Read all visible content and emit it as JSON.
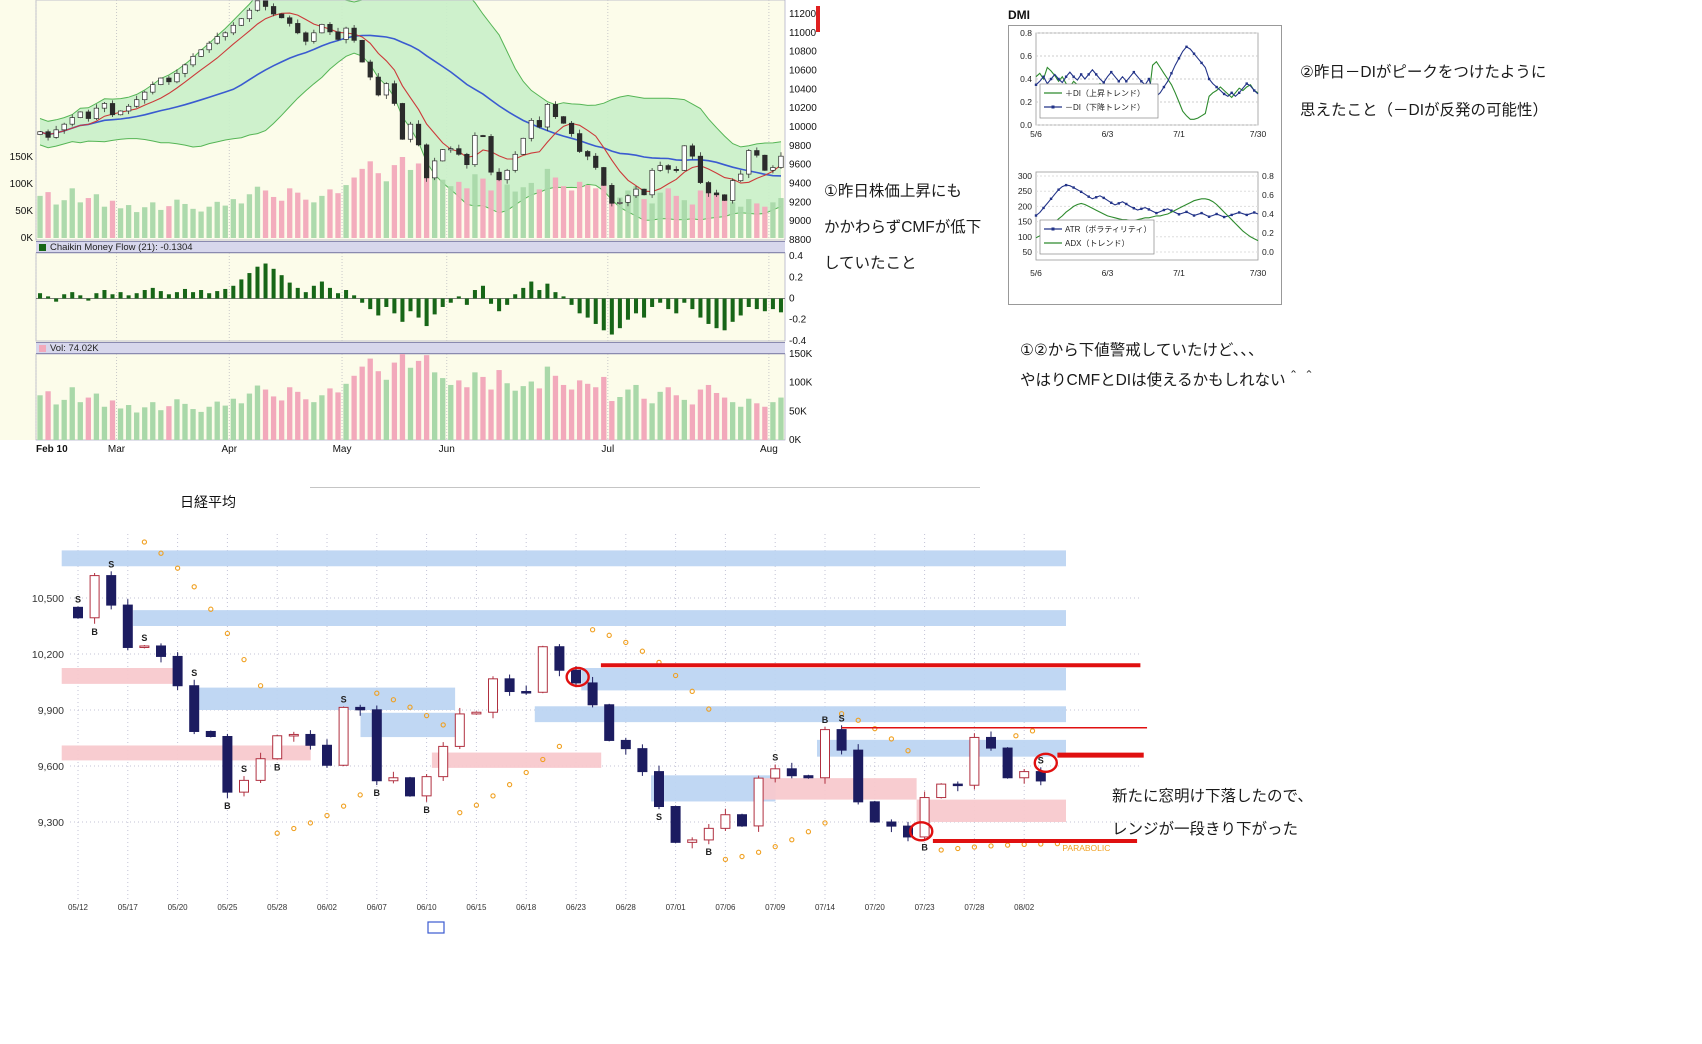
{
  "annotations": {
    "note1": {
      "lines": [
        "①昨日株価上昇にも",
        "かかわらずCMFが低下",
        "していたこと"
      ]
    },
    "note2": {
      "lines": [
        "②昨日－DIがピークをつけたように",
        "思えたこと（－DIが反発の可能性）"
      ]
    },
    "note3": {
      "lines": [
        "①②から下値警戒していたけど、、、",
        "やはりCMFとDIは使えるかもしれない＾＾"
      ]
    },
    "note4": {
      "lines": [
        "新たに窓明け下落したので、",
        "レンジが一段きり下がった"
      ]
    }
  },
  "chart_data": [
    {
      "id": "nikkei-daily-price-cmf-volume",
      "type": "candlestick",
      "x_ticks": [
        {
          "label": "Feb 10",
          "i": 0,
          "bold": true
        },
        {
          "label": "Mar",
          "i": 10
        },
        {
          "label": "Apr",
          "i": 24
        },
        {
          "label": "May",
          "i": 38
        },
        {
          "label": "Jun",
          "i": 51
        },
        {
          "label": "Jul",
          "i": 71
        },
        {
          "label": "Aug",
          "i": 91
        }
      ],
      "y_axis_right": [
        11200,
        11000,
        10800,
        10600,
        10400,
        10200,
        10000,
        9800,
        9600,
        9400,
        9200,
        9000,
        8800
      ],
      "ylim": [
        8800,
        11200
      ],
      "volume_axis": [
        [
          150,
          "150K"
        ],
        [
          100,
          "100K"
        ],
        [
          50,
          "50K"
        ],
        [
          0,
          "0K"
        ]
      ],
      "cmf_label": "Chaikin Money Flow (21): -0.1304",
      "cmf_last": -0.1304,
      "cmf_axis": [
        "0.4",
        "0.2",
        "0",
        "-0.2",
        "-0.4"
      ],
      "vol_label": "Vol: 74.02K",
      "vol_last_k": 74.02,
      "close": [
        9950,
        9890,
        9970,
        10030,
        10100,
        10160,
        10090,
        10200,
        10250,
        10130,
        10170,
        10220,
        10290,
        10370,
        10450,
        10520,
        10480,
        10570,
        10660,
        10750,
        10820,
        10890,
        10960,
        11000,
        11080,
        11150,
        11240,
        11340,
        11280,
        11200,
        11160,
        11100,
        11000,
        10910,
        11000,
        11090,
        11010,
        10930,
        11050,
        10920,
        10690,
        10530,
        10340,
        10460,
        10250,
        9870,
        10030,
        9810,
        9460,
        9640,
        9760,
        9770,
        9710,
        9600,
        9910,
        9900,
        9520,
        9440,
        9540,
        9710,
        9880,
        10070,
        10000,
        10240,
        10110,
        10040,
        9930,
        9740,
        9690,
        9570,
        9380,
        9190,
        9200,
        9270,
        9340,
        9280,
        9540,
        9590,
        9550,
        9540,
        9800,
        9690,
        9410,
        9300,
        9280,
        9220,
        9430,
        9500,
        9750,
        9700,
        9540,
        9570,
        9690
      ],
      "volume_k": [
        78,
        85,
        62,
        70,
        92,
        66,
        74,
        81,
        58,
        69,
        55,
        61,
        48,
        57,
        66,
        52,
        59,
        71,
        63,
        54,
        49,
        58,
        67,
        60,
        72,
        64,
        81,
        95,
        88,
        76,
        69,
        92,
        84,
        71,
        66,
        78,
        90,
        83,
        98,
        112,
        128,
        142,
        120,
        105,
        135,
        150,
        126,
        138,
        148,
        118,
        108,
        96,
        104,
        92,
        118,
        110,
        88,
        122,
        99,
        86,
        94,
        102,
        90,
        128,
        112,
        96,
        88,
        104,
        98,
        92,
        110,
        68,
        75,
        88,
        96,
        72,
        64,
        84,
        92,
        78,
        70,
        62,
        88,
        96,
        82,
        74,
        66,
        58,
        72,
        64,
        58,
        66,
        74
      ],
      "cmf": [
        0.05,
        0.02,
        -0.03,
        0.04,
        0.06,
        0.03,
        -0.02,
        0.05,
        0.08,
        0.04,
        0.06,
        0.03,
        0.05,
        0.08,
        0.1,
        0.07,
        0.04,
        0.06,
        0.09,
        0.06,
        0.08,
        0.05,
        0.07,
        0.09,
        0.12,
        0.18,
        0.24,
        0.3,
        0.33,
        0.28,
        0.22,
        0.15,
        0.1,
        0.06,
        0.12,
        0.16,
        0.1,
        0.05,
        0.08,
        0.03,
        -0.04,
        -0.1,
        -0.16,
        -0.08,
        -0.14,
        -0.22,
        -0.12,
        -0.18,
        -0.26,
        -0.15,
        -0.08,
        -0.04,
        0.02,
        -0.06,
        0.08,
        0.12,
        -0.05,
        -0.12,
        -0.06,
        0.04,
        0.1,
        0.16,
        0.08,
        0.14,
        0.06,
        0.02,
        -0.06,
        -0.14,
        -0.18,
        -0.24,
        -0.3,
        -0.34,
        -0.28,
        -0.2,
        -0.14,
        -0.18,
        -0.08,
        -0.04,
        -0.1,
        -0.14,
        -0.04,
        -0.1,
        -0.18,
        -0.24,
        -0.28,
        -0.3,
        -0.22,
        -0.16,
        -0.08,
        -0.1,
        -0.12,
        -0.1,
        -0.1304
      ],
      "colors": {
        "panel_bg": "#fcfcea",
        "header_bg": "#d7d7ec",
        "boll_fill": "#c9efc9",
        "boll_line": "#55b555",
        "vol_up": "#a9d8a9",
        "vol_down": "#f2a9bb",
        "ma_fast": "#cc3a3a",
        "ma_slow": "#3a5bd0",
        "cmf_bar": "#176617",
        "red_mark": "#e02020"
      }
    },
    {
      "id": "dmi",
      "type": "line",
      "title": "DMI",
      "y_labels": [
        "0.8",
        "0.6",
        "0.4",
        "0.2",
        "0.0"
      ],
      "ylim": [
        0,
        0.8
      ],
      "x_labels": [
        "5/6",
        "6/3",
        "7/1",
        "7/30"
      ],
      "x_ticks": [
        0,
        19,
        38,
        59
      ],
      "series": [
        {
          "name": "＋DI（上昇トレンド）",
          "color": "#2e8b2e",
          "marker": false,
          "values": [
            0.42,
            0.45,
            0.4,
            0.5,
            0.47,
            0.43,
            0.38,
            0.42,
            0.36,
            0.33,
            0.38,
            0.35,
            0.3,
            0.34,
            0.3,
            0.27,
            0.32,
            0.36,
            0.33,
            0.29,
            0.26,
            0.3,
            0.27,
            0.24,
            0.28,
            0.25,
            0.22,
            0.26,
            0.3,
            0.28,
            0.25,
            0.52,
            0.55,
            0.5,
            0.45,
            0.4,
            0.35,
            0.28,
            0.2,
            0.12,
            0.08,
            0.05,
            0.05,
            0.06,
            0.08,
            0.1,
            0.25,
            0.28,
            0.3,
            0.33,
            0.3,
            0.27,
            0.24,
            0.28,
            0.32,
            0.3,
            0.33,
            0.35,
            0.3,
            0.28
          ]
        },
        {
          "name": "－DI（下降トレンド）",
          "color": "#223388",
          "marker": true,
          "values": [
            0.35,
            0.38,
            0.42,
            0.36,
            0.4,
            0.44,
            0.4,
            0.37,
            0.42,
            0.46,
            0.42,
            0.39,
            0.44,
            0.4,
            0.44,
            0.48,
            0.44,
            0.4,
            0.37,
            0.42,
            0.46,
            0.42,
            0.38,
            0.42,
            0.38,
            0.42,
            0.46,
            0.42,
            0.38,
            0.35,
            0.4,
            0.3,
            0.25,
            0.28,
            0.33,
            0.38,
            0.45,
            0.52,
            0.58,
            0.64,
            0.68,
            0.66,
            0.62,
            0.58,
            0.54,
            0.5,
            0.4,
            0.36,
            0.33,
            0.3,
            0.27,
            0.25,
            0.28,
            0.25,
            0.28,
            0.32,
            0.36,
            0.34,
            0.3,
            0.27
          ]
        }
      ]
    },
    {
      "id": "atr-adx",
      "type": "line",
      "y_labels_left": [
        "300",
        "250",
        "200",
        "150",
        "100",
        "50"
      ],
      "ylim_left": [
        50,
        300
      ],
      "y_labels_right": [
        "0.8",
        "0.6",
        "0.4",
        "0.2",
        "0.0"
      ],
      "ylim_right": [
        0,
        0.8
      ],
      "x_labels": [
        "5/6",
        "6/3",
        "7/1",
        "7/30"
      ],
      "x_ticks": [
        0,
        19,
        38,
        59
      ],
      "series": [
        {
          "name": "ATR（ボラティリティ）",
          "color": "#223388",
          "marker": true,
          "axis": "left",
          "values": [
            170,
            180,
            195,
            210,
            225,
            240,
            255,
            265,
            270,
            268,
            262,
            255,
            248,
            240,
            232,
            225,
            230,
            235,
            228,
            220,
            212,
            205,
            210,
            215,
            208,
            200,
            194,
            188,
            192,
            196,
            190,
            184,
            178,
            183,
            188,
            192,
            186,
            180,
            174,
            178,
            182,
            176,
            170,
            174,
            178,
            172,
            166,
            170,
            175,
            170,
            165,
            168,
            172,
            176,
            180,
            176,
            172,
            176,
            180,
            175
          ]
        },
        {
          "name": "ADX（トレンド）",
          "color": "#2e8b2e",
          "marker": false,
          "axis": "right",
          "values": [
            0.15,
            0.17,
            0.2,
            0.23,
            0.27,
            0.31,
            0.35,
            0.38,
            0.42,
            0.45,
            0.48,
            0.5,
            0.51,
            0.5,
            0.48,
            0.46,
            0.44,
            0.42,
            0.4,
            0.38,
            0.37,
            0.36,
            0.35,
            0.34,
            0.34,
            0.33,
            0.33,
            0.34,
            0.35,
            0.36,
            0.36,
            0.37,
            0.38,
            0.38,
            0.39,
            0.4,
            0.42,
            0.44,
            0.46,
            0.48,
            0.5,
            0.52,
            0.54,
            0.55,
            0.56,
            0.56,
            0.55,
            0.53,
            0.5,
            0.46,
            0.42,
            0.38,
            0.34,
            0.3,
            0.26,
            0.22,
            0.19,
            0.16,
            0.14,
            0.12
          ]
        }
      ]
    },
    {
      "id": "nikkei-range-chart",
      "type": "candlestick",
      "title": "日経平均",
      "y_labels": [
        "10,500",
        "10,200",
        "9,900",
        "9,600",
        "9,300"
      ],
      "y_values": [
        10500,
        10200,
        9900,
        9600,
        9300
      ],
      "x_labels": [
        "05/12",
        "05/17",
        "05/20",
        "05/25",
        "05/28",
        "06/02",
        "06/07",
        "06/10",
        "06/15",
        "06/18",
        "06/23",
        "06/28",
        "07/01",
        "07/06",
        "07/09",
        "07/14",
        "07/20",
        "07/23",
        "07/28",
        "08/02"
      ],
      "x_label_sessions": [
        0,
        3,
        6,
        9,
        12,
        15,
        18,
        21,
        24,
        27,
        30,
        33,
        36,
        39,
        42,
        45,
        48,
        51,
        54,
        57
      ],
      "close": [
        10394,
        10620,
        10462,
        10235,
        10243,
        10187,
        10030,
        9785,
        9758,
        9460,
        9523,
        9639,
        9762,
        9769,
        9711,
        9604,
        9914,
        9901,
        9521,
        9537,
        9440,
        9543,
        9705,
        9879,
        9888,
        10067,
        9999,
        9995,
        10239,
        10113,
        10045,
        9928,
        9737,
        9693,
        9570,
        9383,
        9191,
        9204,
        9266,
        9339,
        9279,
        9535,
        9585,
        9548,
        9537,
        9795,
        9685,
        9408,
        9300,
        9278,
        9220,
        9431,
        9503,
        9497,
        9753,
        9696,
        9537,
        9570,
        9520
      ],
      "bands": [
        [
          "blue",
          -0.5,
          60,
          10670,
          10755
        ],
        [
          "blue",
          3.8,
          60,
          10350,
          10435
        ],
        [
          "pink",
          -0.5,
          6.6,
          10040,
          10125
        ],
        [
          "blue",
          7.5,
          23.2,
          9900,
          10020
        ],
        [
          "pink",
          -0.5,
          14.5,
          9630,
          9710
        ],
        [
          "blue",
          17.5,
          23.2,
          9755,
          9885
        ],
        [
          "pink",
          21.8,
          32,
          9590,
          9672
        ],
        [
          "blue",
          30.8,
          60,
          10005,
          10125
        ],
        [
          "blue",
          28,
          60,
          9835,
          9920
        ],
        [
          "blue",
          35,
          42.5,
          9410,
          9550
        ],
        [
          "pink",
          41.5,
          51,
          9420,
          9535
        ],
        [
          "blue",
          45,
          60,
          9650,
          9740
        ],
        [
          "pink",
          51,
          60,
          9300,
          9420
        ]
      ],
      "red_lines": [
        [
          31.5,
          64,
          10140,
          4
        ],
        [
          46,
          64.4,
          9805,
          1.5
        ],
        [
          59,
          64.2,
          9658,
          5
        ],
        [
          51.5,
          63.8,
          9198,
          4
        ]
      ],
      "red_circles": [
        [
          30.1,
          10077
        ],
        [
          50.8,
          9250
        ],
        [
          58.3,
          9617
        ]
      ],
      "sar_dots": [
        [
          4,
          10800
        ],
        [
          5,
          10740
        ],
        [
          6,
          10660
        ],
        [
          7,
          10560
        ],
        [
          8,
          10440
        ],
        [
          9,
          10310
        ],
        [
          10,
          10170
        ],
        [
          11,
          10030
        ],
        [
          12,
          9240
        ],
        [
          13,
          9265
        ],
        [
          14,
          9295
        ],
        [
          15,
          9335
        ],
        [
          16,
          9385
        ],
        [
          17,
          9445
        ],
        [
          18,
          9990
        ],
        [
          19,
          9955
        ],
        [
          20,
          9915
        ],
        [
          21,
          9870
        ],
        [
          22,
          9820
        ],
        [
          23,
          9350
        ],
        [
          24,
          9390
        ],
        [
          25,
          9440
        ],
        [
          26,
          9500
        ],
        [
          27,
          9565
        ],
        [
          28,
          9635
        ],
        [
          29,
          9705
        ],
        [
          31,
          10330
        ],
        [
          32,
          10300
        ],
        [
          33,
          10262
        ],
        [
          34,
          10215
        ],
        [
          35,
          10155
        ],
        [
          36,
          10085
        ],
        [
          37,
          10000
        ],
        [
          38,
          9905
        ],
        [
          39,
          9100
        ],
        [
          40,
          9115
        ],
        [
          41,
          9138
        ],
        [
          42,
          9168
        ],
        [
          43,
          9205
        ],
        [
          44,
          9248
        ],
        [
          45,
          9295
        ],
        [
          46,
          9880
        ],
        [
          47,
          9845
        ],
        [
          48,
          9800
        ],
        [
          49,
          9745
        ],
        [
          50,
          9682
        ],
        [
          52,
          9150
        ],
        [
          53,
          9158
        ],
        [
          54,
          9166
        ],
        [
          55,
          9172
        ],
        [
          56,
          9176
        ],
        [
          57,
          9180
        ],
        [
          58,
          9182
        ],
        [
          59,
          9184
        ],
        [
          56.5,
          9762
        ],
        [
          57.5,
          9788
        ]
      ],
      "markers": [
        [
          0,
          "S",
          "a"
        ],
        [
          1,
          "B",
          "b"
        ],
        [
          2,
          "S",
          "a"
        ],
        [
          4,
          "S",
          "a"
        ],
        [
          7,
          "S",
          "a"
        ],
        [
          9,
          "B",
          "b"
        ],
        [
          10,
          "S",
          "a"
        ],
        [
          12,
          "B",
          "b"
        ],
        [
          16,
          "S",
          "a"
        ],
        [
          18,
          "B",
          "b"
        ],
        [
          21,
          "B",
          "b"
        ],
        [
          35,
          "S",
          "b"
        ],
        [
          38,
          "B",
          "b"
        ],
        [
          42,
          "S",
          "a"
        ],
        [
          45,
          "B",
          "a"
        ],
        [
          46,
          "S",
          "a"
        ],
        [
          51,
          "B",
          "b"
        ],
        [
          58,
          "S",
          "a"
        ]
      ],
      "parabolic_label": {
        "text": "PARABOLIC",
        "s": 59.3,
        "p": 9160
      },
      "colors": {
        "blue": "#bdd5f2",
        "pink": "#f8c9ce",
        "red": "#e01010",
        "orange": "#f0a020",
        "up_body": "#ffffff",
        "up_edge": "#b03040",
        "down_body": "#1c1c60"
      }
    }
  ]
}
